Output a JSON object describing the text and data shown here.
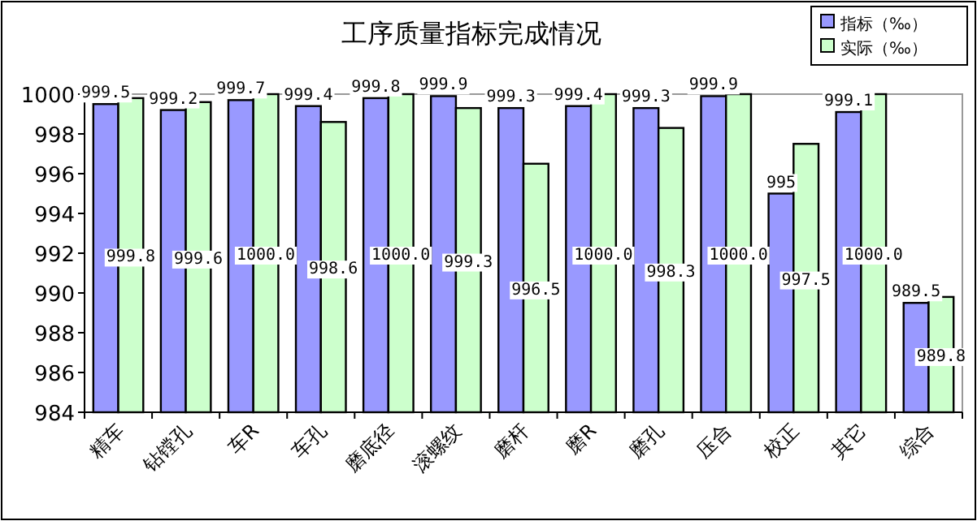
{
  "chart_data": {
    "type": "bar",
    "title": "工序质量指标完成情况",
    "categories": [
      "精车",
      "钻镗孔",
      "车R",
      "车孔",
      "磨底径",
      "滚螺纹",
      "磨杆",
      "磨R",
      "磨孔",
      "压合",
      "校正",
      "其它",
      "综合"
    ],
    "series": [
      {
        "name": "指标（‰）",
        "color": "#9999ff",
        "values": [
          999.5,
          999.2,
          999.7,
          999.4,
          999.8,
          999.9,
          999.3,
          999.4,
          999.3,
          999.9,
          995,
          999.1,
          989.5
        ],
        "value_labels": [
          "999.5",
          "999.2",
          "999.7",
          "999.4",
          "999.8",
          "999.9",
          "999.3",
          "999.4",
          "999.3",
          "999.9",
          "995",
          "999.1",
          "989.5"
        ]
      },
      {
        "name": "实际（‰）",
        "color": "#ccffcc",
        "values": [
          999.8,
          999.6,
          1000.0,
          998.6,
          1000.0,
          999.3,
          996.5,
          1000.0,
          998.3,
          1000.0,
          997.5,
          1000.0,
          989.8
        ],
        "value_labels": [
          "999.8",
          "999.6",
          "1000.0",
          "998.6",
          "1000.0",
          "999.3",
          "996.5",
          "1000.0",
          "998.3",
          "1000.0",
          "997.5",
          "1000.0",
          "989.8"
        ]
      }
    ],
    "ylim": [
      984,
      1000
    ],
    "yticks": [
      984,
      986,
      988,
      990,
      992,
      994,
      996,
      998,
      1000
    ],
    "legend": "top right"
  }
}
